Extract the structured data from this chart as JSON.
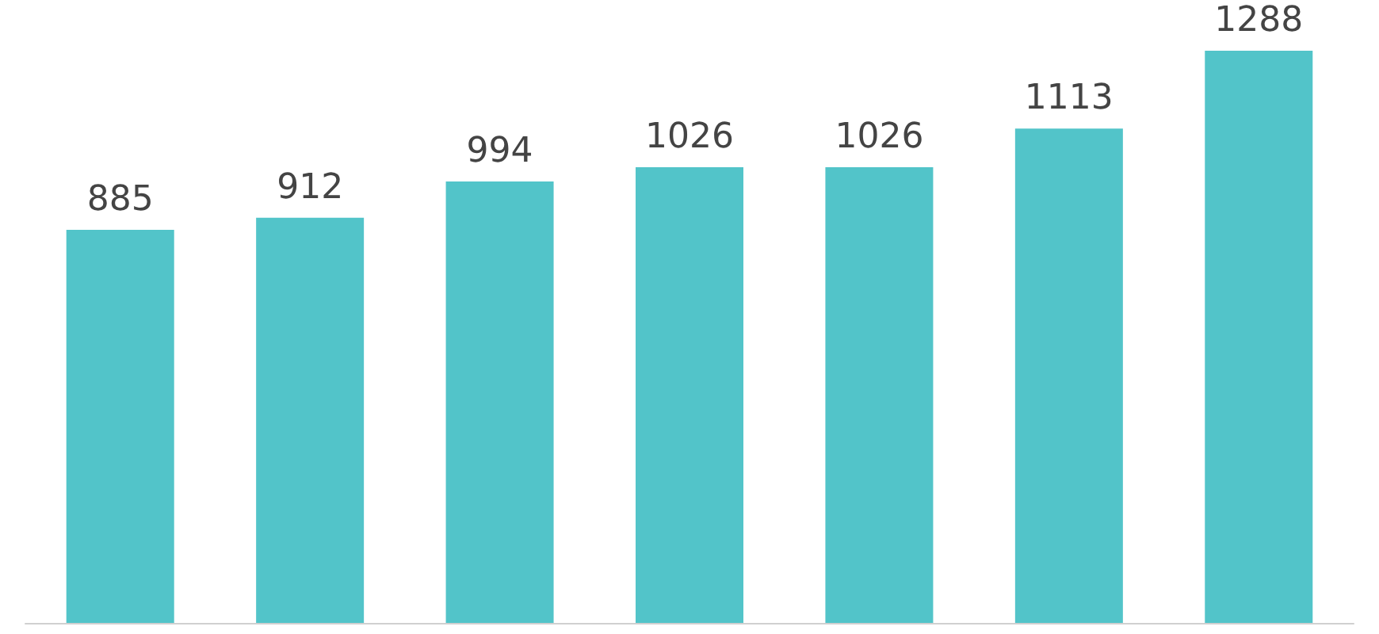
{
  "chart_data": {
    "type": "bar",
    "categories": [
      null,
      null,
      null,
      null,
      null,
      null,
      null
    ],
    "values": [
      885,
      912,
      994,
      1026,
      1026,
      1113,
      1288
    ],
    "color": "#52c4c9",
    "data_labels": true
  }
}
